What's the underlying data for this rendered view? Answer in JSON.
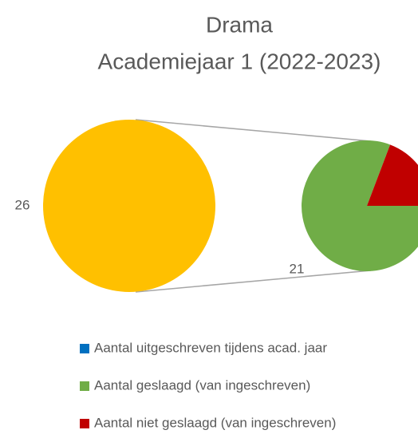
{
  "chart_data": {
    "type": "pie-of-pie",
    "title_lines": [
      "Drama",
      "Academiejaar 1 (2022-2023)"
    ],
    "categories": [
      "Aantal uitgeschreven tijdens acad. jaar",
      "Aantal geslaagd (van ingeschreven)",
      "Aantal niet geslaagd (van ingeschreven)"
    ],
    "colors": [
      "#0070c0",
      "#70ad47",
      "#c00000"
    ],
    "values": [
      0,
      21,
      5
    ],
    "other_value": 26,
    "other_color": "#ffc000",
    "legend": "bottom"
  }
}
